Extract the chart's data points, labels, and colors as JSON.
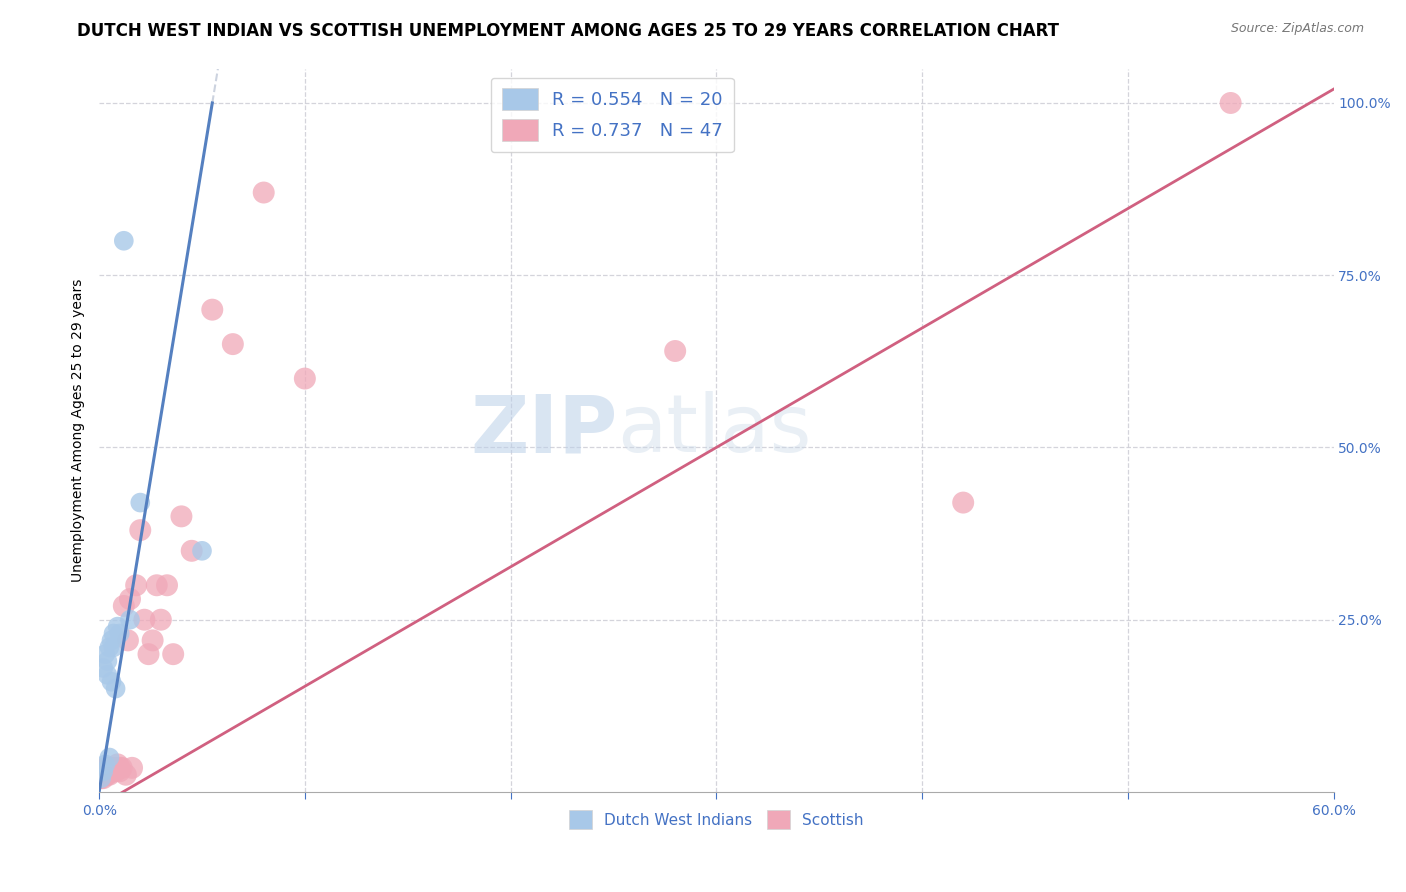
{
  "title": "DUTCH WEST INDIAN VS SCOTTISH UNEMPLOYMENT AMONG AGES 25 TO 29 YEARS CORRELATION CHART",
  "source": "Source: ZipAtlas.com",
  "ylabel": "Unemployment Among Ages 25 to 29 years",
  "legend_entry1": "R = 0.554   N = 20",
  "legend_entry2": "R = 0.737   N = 47",
  "legend_label1": "Dutch West Indians",
  "legend_label2": "Scottish",
  "blue_scatter_color": "#a8c8e8",
  "pink_scatter_color": "#f0a8b8",
  "blue_line_color": "#5580c0",
  "pink_line_color": "#d06080",
  "blue_ext_color": "#c0c8d8",
  "xlim": [
    0,
    0.6
  ],
  "ylim": [
    0,
    1.05
  ],
  "background_color": "#ffffff",
  "grid_color": "#d0d0d8",
  "watermark_zip": "ZIP",
  "watermark_atlas": "atlas",
  "title_fontsize": 12,
  "source_fontsize": 9,
  "dutch_x": [
    0.001,
    0.002,
    0.002,
    0.003,
    0.003,
    0.004,
    0.004,
    0.005,
    0.005,
    0.006,
    0.006,
    0.007,
    0.007,
    0.008,
    0.009,
    0.01,
    0.012,
    0.015,
    0.02,
    0.05
  ],
  "dutch_y": [
    0.02,
    0.03,
    0.18,
    0.04,
    0.2,
    0.19,
    0.17,
    0.21,
    0.05,
    0.22,
    0.16,
    0.23,
    0.21,
    0.15,
    0.24,
    0.23,
    0.8,
    0.25,
    0.42,
    0.35
  ],
  "scottish_x": [
    0.001,
    0.001,
    0.002,
    0.002,
    0.002,
    0.003,
    0.003,
    0.003,
    0.004,
    0.004,
    0.004,
    0.005,
    0.005,
    0.005,
    0.006,
    0.006,
    0.007,
    0.007,
    0.008,
    0.008,
    0.009,
    0.01,
    0.01,
    0.011,
    0.012,
    0.013,
    0.014,
    0.015,
    0.016,
    0.018,
    0.02,
    0.022,
    0.024,
    0.026,
    0.028,
    0.03,
    0.033,
    0.036,
    0.04,
    0.045,
    0.055,
    0.065,
    0.08,
    0.1,
    0.28,
    0.42,
    0.55
  ],
  "scottish_y": [
    0.02,
    0.03,
    0.02,
    0.025,
    0.03,
    0.025,
    0.03,
    0.035,
    0.025,
    0.03,
    0.035,
    0.025,
    0.03,
    0.035,
    0.03,
    0.035,
    0.03,
    0.035,
    0.03,
    0.035,
    0.04,
    0.03,
    0.035,
    0.035,
    0.27,
    0.025,
    0.22,
    0.28,
    0.035,
    0.3,
    0.38,
    0.25,
    0.2,
    0.22,
    0.3,
    0.25,
    0.3,
    0.2,
    0.4,
    0.35,
    0.7,
    0.65,
    0.87,
    0.6,
    0.64,
    0.42,
    1.0
  ],
  "dutch_line_x0": 0.0,
  "dutch_line_y0": 0.0,
  "dutch_line_x1": 0.055,
  "dutch_line_y1": 1.0,
  "scottish_line_x0": 0.0,
  "scottish_line_y0": -0.02,
  "scottish_line_x1": 0.6,
  "scottish_line_y1": 1.02
}
